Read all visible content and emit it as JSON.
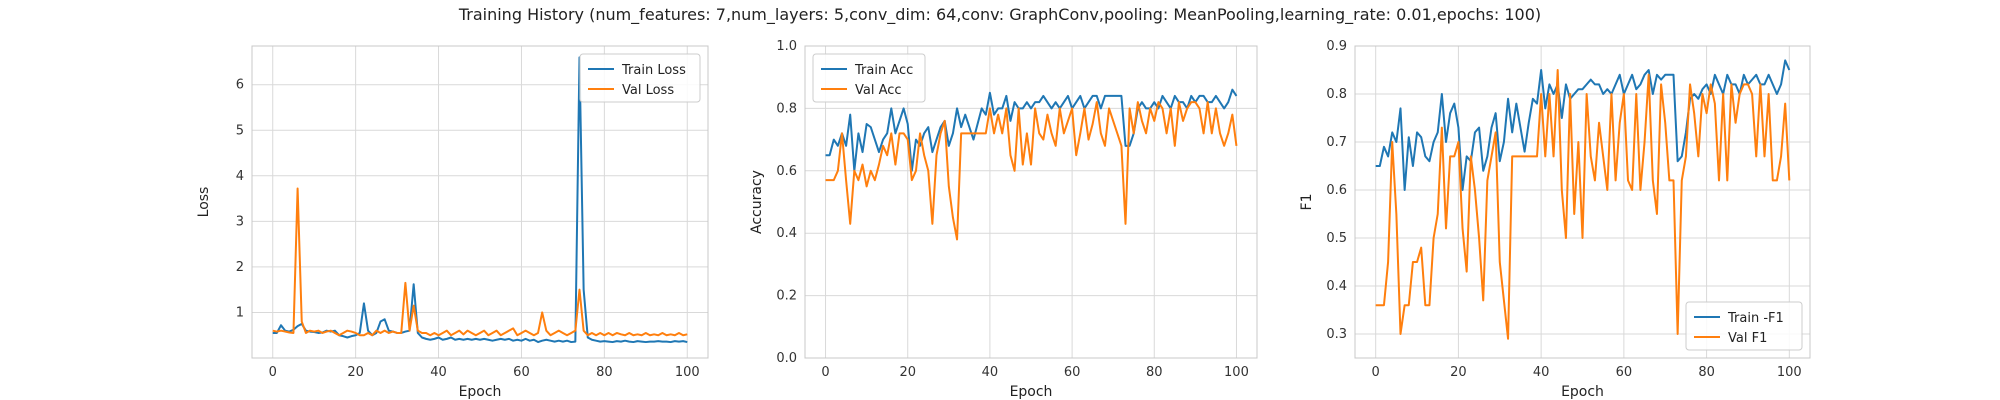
{
  "figure": {
    "title": "Training History (num_features: 7,num_layers: 5,conv_dim: 64,conv: GraphConv,pooling: MeanPooling,learning_rate: 0.01,epochs: 100)"
  },
  "colors": {
    "train": "#1f77b4",
    "val": "#ff7f0e",
    "grid": "#d9d9d9",
    "axis": "#c8c8c8"
  },
  "chart_data": [
    {
      "type": "line",
      "xlabel": "Epoch",
      "ylabel": "Loss",
      "xlim": [
        -5,
        105
      ],
      "ylim": [
        0,
        6.85
      ],
      "xticks": [
        0,
        20,
        40,
        60,
        80,
        100
      ],
      "yticks": [
        1,
        2,
        3,
        4,
        5,
        6
      ],
      "grid": true,
      "legend_position": "top-right",
      "series": [
        {
          "name": "Train Loss",
          "color": "#1f77b4",
          "x_start": 0,
          "values": [
            0.55,
            0.55,
            0.72,
            0.6,
            0.58,
            0.62,
            0.7,
            0.75,
            0.6,
            0.58,
            0.57,
            0.55,
            0.56,
            0.6,
            0.58,
            0.6,
            0.5,
            0.48,
            0.45,
            0.48,
            0.5,
            0.55,
            1.2,
            0.6,
            0.5,
            0.55,
            0.8,
            0.85,
            0.6,
            0.58,
            0.55,
            0.55,
            0.58,
            0.6,
            1.62,
            0.55,
            0.45,
            0.42,
            0.4,
            0.42,
            0.45,
            0.4,
            0.42,
            0.45,
            0.4,
            0.42,
            0.4,
            0.42,
            0.4,
            0.42,
            0.4,
            0.42,
            0.4,
            0.38,
            0.4,
            0.42,
            0.4,
            0.42,
            0.38,
            0.4,
            0.38,
            0.42,
            0.38,
            0.4,
            0.35,
            0.38,
            0.4,
            0.38,
            0.36,
            0.38,
            0.36,
            0.38,
            0.35,
            0.36,
            6.6,
            1.5,
            0.45,
            0.4,
            0.38,
            0.36,
            0.37,
            0.36,
            0.35,
            0.37,
            0.36,
            0.38,
            0.36,
            0.35,
            0.37,
            0.36,
            0.35,
            0.36,
            0.36,
            0.37,
            0.36,
            0.36,
            0.35,
            0.37,
            0.36,
            0.37,
            0.35
          ],
          "markers": false
        },
        {
          "name": "Val Loss",
          "color": "#ff7f0e",
          "x_start": 0,
          "values": [
            0.6,
            0.58,
            0.6,
            0.58,
            0.56,
            0.55,
            3.72,
            0.8,
            0.55,
            0.6,
            0.58,
            0.6,
            0.55,
            0.58,
            0.6,
            0.55,
            0.5,
            0.55,
            0.6,
            0.58,
            0.55,
            0.5,
            0.5,
            0.55,
            0.5,
            0.6,
            0.55,
            0.6,
            0.55,
            0.58,
            0.55,
            0.55,
            1.65,
            0.6,
            1.15,
            0.6,
            0.55,
            0.55,
            0.5,
            0.55,
            0.5,
            0.55,
            0.6,
            0.5,
            0.55,
            0.6,
            0.52,
            0.6,
            0.55,
            0.5,
            0.55,
            0.6,
            0.5,
            0.55,
            0.6,
            0.5,
            0.55,
            0.6,
            0.65,
            0.5,
            0.55,
            0.6,
            0.55,
            0.5,
            0.55,
            1.0,
            0.6,
            0.5,
            0.55,
            0.6,
            0.55,
            0.5,
            0.55,
            0.6,
            1.5,
            0.6,
            0.5,
            0.55,
            0.5,
            0.55,
            0.5,
            0.55,
            0.5,
            0.55,
            0.52,
            0.5,
            0.55,
            0.5,
            0.52,
            0.5,
            0.55,
            0.5,
            0.52,
            0.5,
            0.55,
            0.5,
            0.52,
            0.5,
            0.55,
            0.5,
            0.52
          ],
          "markers": false
        }
      ]
    },
    {
      "type": "line",
      "xlabel": "Epoch",
      "ylabel": "Accuracy",
      "xlim": [
        -5,
        105
      ],
      "ylim": [
        0,
        1.0
      ],
      "xticks": [
        0,
        20,
        40,
        60,
        80,
        100
      ],
      "yticks": [
        0.0,
        0.2,
        0.4,
        0.6,
        0.8,
        1.0
      ],
      "grid": true,
      "legend_position": "top-left",
      "series": [
        {
          "name": "Train Acc",
          "color": "#1f77b4",
          "x_start": 0,
          "values": [
            0.65,
            0.65,
            0.7,
            0.68,
            0.72,
            0.68,
            0.78,
            0.6,
            0.72,
            0.66,
            0.75,
            0.74,
            0.7,
            0.66,
            0.7,
            0.72,
            0.8,
            0.72,
            0.76,
            0.8,
            0.75,
            0.6,
            0.7,
            0.68,
            0.72,
            0.74,
            0.66,
            0.7,
            0.74,
            0.76,
            0.68,
            0.72,
            0.8,
            0.74,
            0.78,
            0.74,
            0.7,
            0.75,
            0.8,
            0.78,
            0.85,
            0.78,
            0.8,
            0.8,
            0.84,
            0.76,
            0.82,
            0.8,
            0.8,
            0.82,
            0.8,
            0.82,
            0.82,
            0.84,
            0.82,
            0.8,
            0.82,
            0.8,
            0.82,
            0.84,
            0.8,
            0.82,
            0.84,
            0.8,
            0.82,
            0.84,
            0.84,
            0.8,
            0.84,
            0.84,
            0.84,
            0.84,
            0.84,
            0.68,
            0.68,
            0.72,
            0.8,
            0.82,
            0.8,
            0.8,
            0.82,
            0.8,
            0.84,
            0.82,
            0.8,
            0.84,
            0.82,
            0.82,
            0.8,
            0.84,
            0.82,
            0.84,
            0.84,
            0.82,
            0.82,
            0.84,
            0.82,
            0.8,
            0.82,
            0.86,
            0.84
          ],
          "markers": false
        },
        {
          "name": "Val Acc",
          "color": "#ff7f0e",
          "x_start": 0,
          "values": [
            0.57,
            0.57,
            0.57,
            0.6,
            0.72,
            0.57,
            0.43,
            0.6,
            0.57,
            0.62,
            0.55,
            0.6,
            0.57,
            0.62,
            0.68,
            0.65,
            0.72,
            0.62,
            0.72,
            0.72,
            0.7,
            0.57,
            0.6,
            0.72,
            0.65,
            0.6,
            0.43,
            0.65,
            0.72,
            0.76,
            0.55,
            0.45,
            0.38,
            0.72,
            0.72,
            0.72,
            0.72,
            0.72,
            0.72,
            0.72,
            0.8,
            0.72,
            0.78,
            0.72,
            0.8,
            0.65,
            0.6,
            0.8,
            0.62,
            0.72,
            0.62,
            0.8,
            0.72,
            0.7,
            0.78,
            0.72,
            0.68,
            0.8,
            0.72,
            0.76,
            0.8,
            0.65,
            0.72,
            0.8,
            0.7,
            0.75,
            0.82,
            0.72,
            0.68,
            0.8,
            0.76,
            0.72,
            0.68,
            0.43,
            0.8,
            0.72,
            0.82,
            0.76,
            0.72,
            0.8,
            0.76,
            0.82,
            0.8,
            0.72,
            0.8,
            0.68,
            0.82,
            0.76,
            0.8,
            0.82,
            0.82,
            0.8,
            0.72,
            0.82,
            0.72,
            0.8,
            0.72,
            0.68,
            0.72,
            0.78,
            0.68
          ],
          "markers": false
        }
      ]
    },
    {
      "type": "line",
      "xlabel": "Epoch",
      "ylabel": "F1",
      "xlim": [
        -5,
        105
      ],
      "ylim": [
        0.25,
        0.9
      ],
      "xticks": [
        0,
        20,
        40,
        60,
        80,
        100
      ],
      "yticks": [
        0.3,
        0.4,
        0.5,
        0.6,
        0.7,
        0.8,
        0.9
      ],
      "grid": true,
      "legend_position": "bottom-right",
      "series": [
        {
          "name": "Train -F1",
          "color": "#1f77b4",
          "x_start": 0,
          "values": [
            0.65,
            0.65,
            0.69,
            0.67,
            0.72,
            0.7,
            0.77,
            0.6,
            0.71,
            0.65,
            0.72,
            0.71,
            0.67,
            0.66,
            0.7,
            0.72,
            0.8,
            0.7,
            0.76,
            0.78,
            0.73,
            0.6,
            0.67,
            0.66,
            0.72,
            0.73,
            0.64,
            0.67,
            0.73,
            0.76,
            0.66,
            0.7,
            0.79,
            0.72,
            0.78,
            0.73,
            0.68,
            0.74,
            0.79,
            0.78,
            0.85,
            0.77,
            0.82,
            0.8,
            0.82,
            0.75,
            0.82,
            0.79,
            0.8,
            0.81,
            0.81,
            0.82,
            0.83,
            0.82,
            0.82,
            0.8,
            0.81,
            0.8,
            0.82,
            0.84,
            0.8,
            0.82,
            0.84,
            0.81,
            0.82,
            0.84,
            0.85,
            0.8,
            0.84,
            0.83,
            0.84,
            0.84,
            0.84,
            0.66,
            0.67,
            0.72,
            0.79,
            0.8,
            0.79,
            0.81,
            0.82,
            0.8,
            0.84,
            0.82,
            0.8,
            0.84,
            0.82,
            0.82,
            0.8,
            0.84,
            0.82,
            0.83,
            0.84,
            0.82,
            0.82,
            0.84,
            0.82,
            0.8,
            0.82,
            0.87,
            0.85
          ],
          "markers": false
        },
        {
          "name": "Val F1",
          "color": "#ff7f0e",
          "x_start": 0,
          "values": [
            0.36,
            0.36,
            0.36,
            0.45,
            0.7,
            0.55,
            0.3,
            0.36,
            0.36,
            0.45,
            0.45,
            0.48,
            0.36,
            0.36,
            0.5,
            0.55,
            0.73,
            0.52,
            0.67,
            0.67,
            0.7,
            0.52,
            0.43,
            0.67,
            0.6,
            0.5,
            0.37,
            0.62,
            0.67,
            0.72,
            0.45,
            0.37,
            0.29,
            0.67,
            0.67,
            0.67,
            0.67,
            0.67,
            0.67,
            0.67,
            0.8,
            0.67,
            0.8,
            0.67,
            0.85,
            0.6,
            0.5,
            0.8,
            0.55,
            0.7,
            0.5,
            0.8,
            0.67,
            0.62,
            0.74,
            0.67,
            0.6,
            0.8,
            0.62,
            0.74,
            0.8,
            0.62,
            0.6,
            0.8,
            0.6,
            0.7,
            0.84,
            0.62,
            0.55,
            0.82,
            0.74,
            0.62,
            0.62,
            0.3,
            0.62,
            0.67,
            0.82,
            0.76,
            0.67,
            0.8,
            0.76,
            0.82,
            0.78,
            0.62,
            0.8,
            0.62,
            0.82,
            0.74,
            0.8,
            0.82,
            0.82,
            0.8,
            0.67,
            0.82,
            0.67,
            0.8,
            0.62,
            0.62,
            0.67,
            0.78,
            0.62
          ],
          "markers": false
        }
      ]
    }
  ]
}
